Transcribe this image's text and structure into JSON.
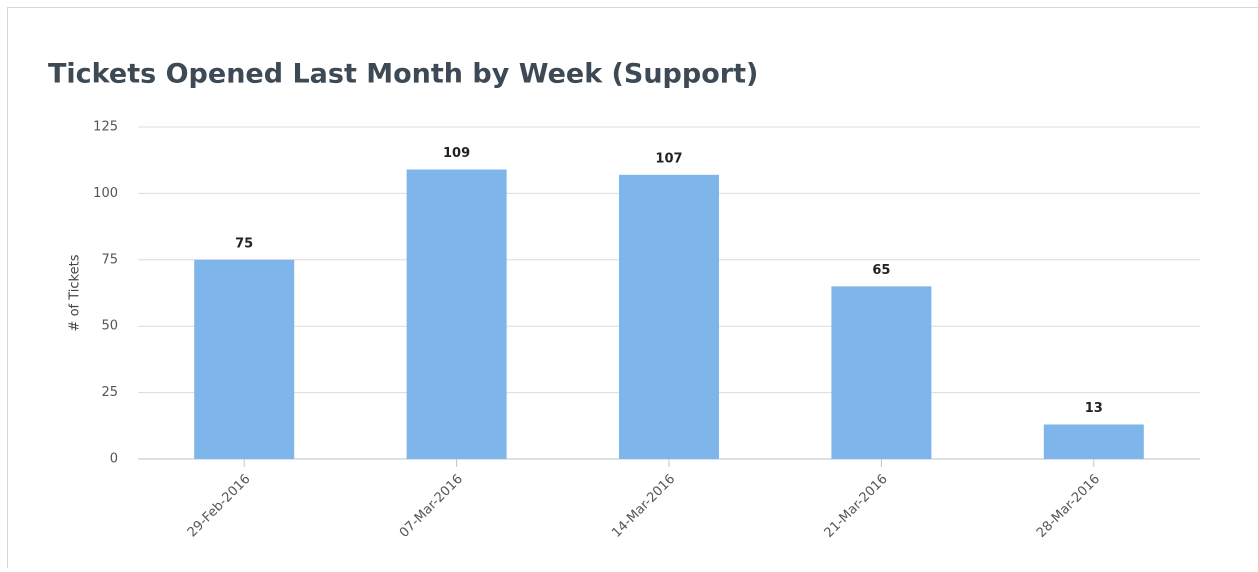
{
  "chart_data": {
    "type": "bar",
    "title": "Tickets Opened Last Month by Week (Support)",
    "y_label": "# of Tickets",
    "categories": [
      "29-Feb-2016",
      "07-Mar-2016",
      "14-Mar-2016",
      "21-Mar-2016",
      "28-Mar-2016"
    ],
    "values": [
      75,
      109,
      107,
      65,
      13
    ],
    "color": "#7eb5ea",
    "ylim": [
      0,
      125
    ],
    "yticks": [
      0,
      25,
      50,
      75,
      100,
      125
    ],
    "grid": true
  }
}
